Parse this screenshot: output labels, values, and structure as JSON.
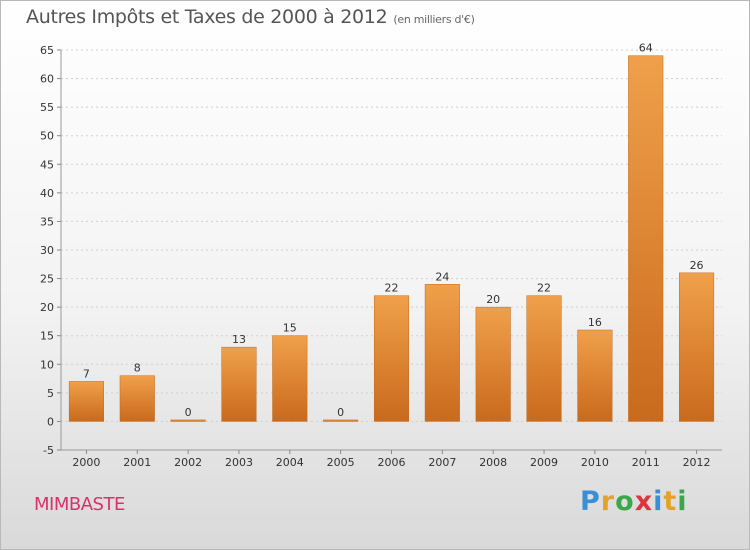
{
  "title": "Autres Impôts et Taxes de 2000 à 2012",
  "unit_note": "(en milliers d'€)",
  "commune": "MIMBASTE",
  "logo": {
    "letters": [
      "P",
      "r",
      "o",
      "x",
      "i",
      "t",
      "i"
    ],
    "colors": [
      "#3a8fd4",
      "#e2a32c",
      "#3aa84a",
      "#d9363e",
      "#3a8fd4",
      "#e2a32c",
      "#3aa84a"
    ]
  },
  "colors": {
    "bar": "#f0a04a",
    "bar_dark": "#c96a1c"
  },
  "chart_data": {
    "type": "bar",
    "title": "Autres Impôts et Taxes de 2000 à 2012",
    "xlabel": "",
    "ylabel": "",
    "categories": [
      "2000",
      "2001",
      "2002",
      "2003",
      "2004",
      "2005",
      "2006",
      "2007",
      "2008",
      "2009",
      "2010",
      "2011",
      "2012"
    ],
    "values": [
      7,
      8,
      0,
      13,
      15,
      0,
      22,
      24,
      20,
      22,
      16,
      64,
      26
    ],
    "data_labels": [
      "7",
      "8",
      "0",
      "13",
      "15",
      "0",
      "22",
      "24",
      "20",
      "22",
      "16",
      "64",
      "26"
    ],
    "ylim": [
      -5,
      65
    ],
    "yticks": [
      -5,
      0,
      5,
      10,
      15,
      20,
      25,
      30,
      35,
      40,
      45,
      50,
      55,
      60,
      65
    ],
    "ytick_labels": [
      "-5",
      "0",
      "5",
      "10",
      "15",
      "20",
      "25",
      "30",
      "35",
      "40",
      "45",
      "50",
      "55",
      "60",
      "65"
    ],
    "grid": true,
    "legend": "none"
  }
}
